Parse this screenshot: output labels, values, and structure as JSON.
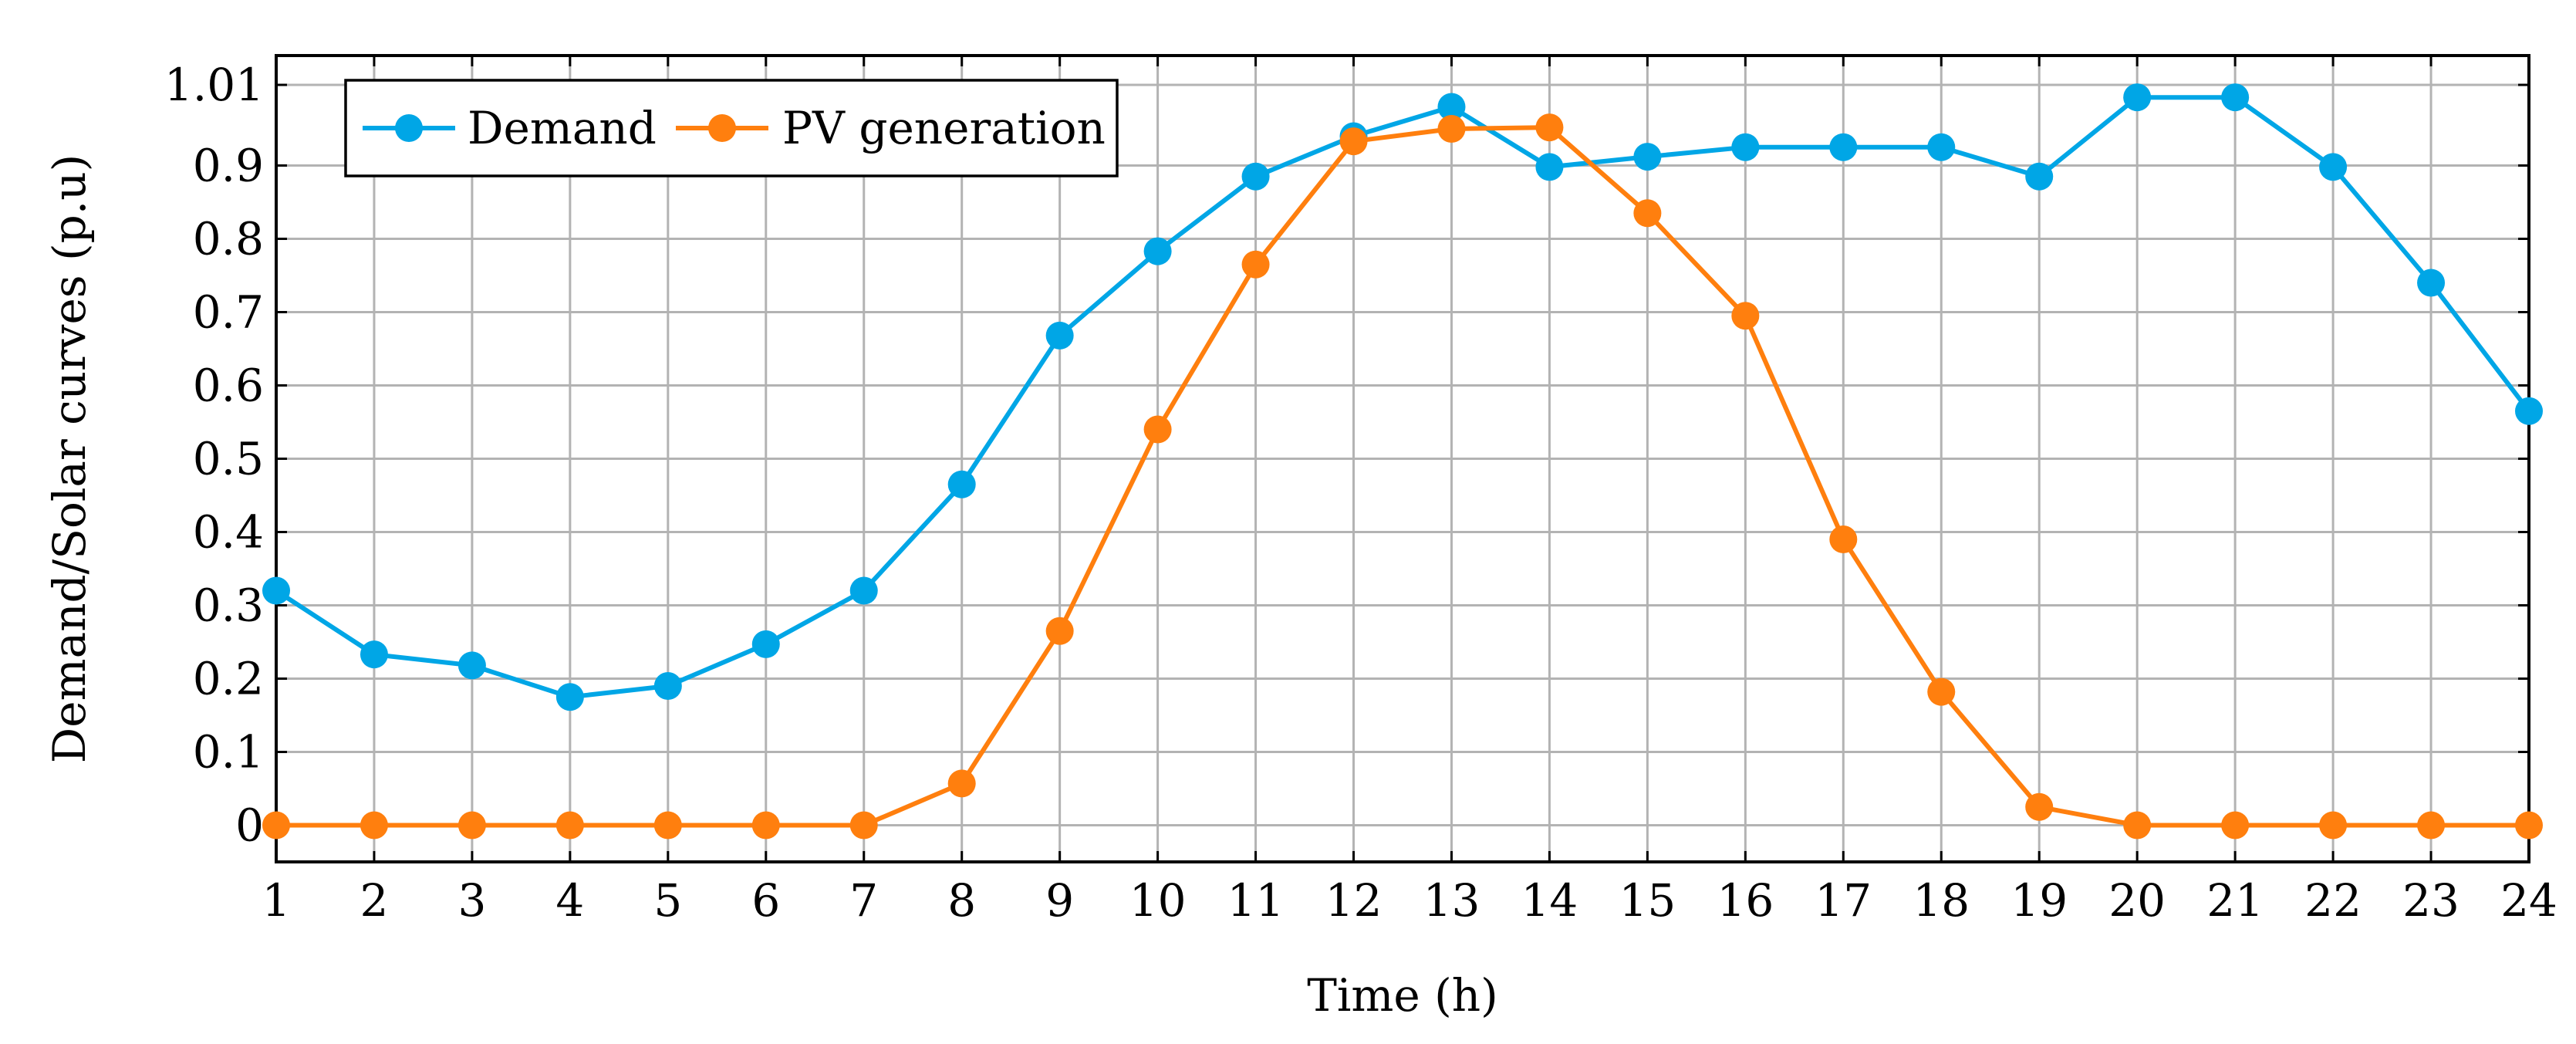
{
  "chart_data": {
    "type": "line",
    "title": "",
    "xlabel": "Time (h)",
    "ylabel": "Demand/Solar curves (p.u)",
    "x": [
      1,
      2,
      3,
      4,
      5,
      6,
      7,
      8,
      9,
      10,
      11,
      12,
      13,
      14,
      15,
      16,
      17,
      18,
      19,
      20,
      21,
      22,
      23,
      24
    ],
    "xlim": [
      1,
      24
    ],
    "ylim": [
      -0.05,
      1.05
    ],
    "yticks": [
      0,
      0.1,
      0.2,
      0.3,
      0.4,
      0.5,
      0.6,
      0.7,
      0.8,
      0.9,
      1.01
    ],
    "ytick_labels": [
      "0",
      "0.1",
      "0.2",
      "0.3",
      "0.4",
      "0.5",
      "0.6",
      "0.7",
      "0.8",
      "0.9",
      "1.01"
    ],
    "grid": true,
    "legend_position": "top-left",
    "series": [
      {
        "name": "Demand",
        "color": "#00a6e6",
        "values": [
          0.32,
          0.233,
          0.218,
          0.175,
          0.19,
          0.247,
          0.32,
          0.465,
          0.668,
          0.783,
          0.885,
          0.94,
          0.98,
          0.898,
          0.912,
          0.925,
          0.925,
          0.925,
          0.885,
          0.993,
          0.993,
          0.898,
          0.74,
          0.565
        ]
      },
      {
        "name": "PV generation",
        "color": "#ff7f0e",
        "values": [
          0,
          0,
          0,
          0,
          0,
          0,
          0,
          0.057,
          0.265,
          0.54,
          0.765,
          0.933,
          0.95,
          0.952,
          0.835,
          0.695,
          0.39,
          0.182,
          0.025,
          0,
          0,
          0,
          0,
          0
        ]
      }
    ]
  }
}
